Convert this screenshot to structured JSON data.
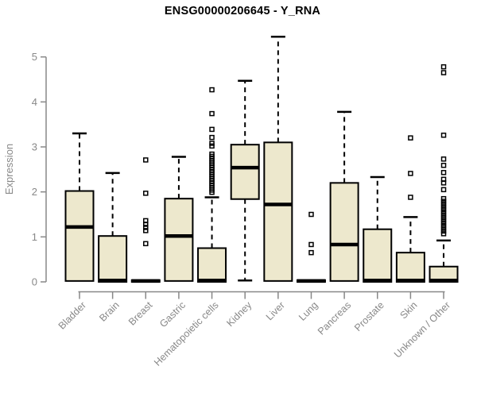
{
  "title": "ENSG00000206645 - Y_RNA",
  "colors": {
    "box_fill": "#EDE8CD",
    "box_stroke": "#000000",
    "median": "#000000",
    "whisker": "#000000",
    "outlier": "#000000",
    "axis": "#888888",
    "tick_label": "#888888",
    "title_text": "#000000"
  },
  "chart_data": {
    "type": "boxplot",
    "title": "ENSG00000206645 - Y_RNA",
    "xlabel": "",
    "ylabel": "Expression",
    "ylim": [
      0,
      5
    ],
    "yticks": [
      0,
      1,
      2,
      3,
      4,
      5
    ],
    "grid": false,
    "legend": "none",
    "categories": [
      "Bladder",
      "Brain",
      "Breast",
      "Gastric",
      "Hematopoietic cells",
      "Kidney",
      "Liver",
      "Lung",
      "Pancreas",
      "Prostate",
      "Skin",
      "Unknown / Other"
    ],
    "boxes": [
      {
        "label": "Bladder",
        "whisker_low": 0.02,
        "q1": 0.02,
        "median": 1.22,
        "q3": 2.02,
        "whisker_high": 3.3,
        "outliers": []
      },
      {
        "label": "Brain",
        "whisker_low": 0.0,
        "q1": 0.0,
        "median": 0.03,
        "q3": 1.02,
        "whisker_high": 2.42,
        "outliers": []
      },
      {
        "label": "Breast",
        "whisker_low": 0.0,
        "q1": 0.0,
        "median": 0.02,
        "q3": 0.04,
        "whisker_high": 0.04,
        "outliers": [
          2.71,
          1.97,
          1.36,
          1.28,
          1.21,
          1.14,
          0.85
        ]
      },
      {
        "label": "Gastric",
        "whisker_low": 0.02,
        "q1": 0.02,
        "median": 1.02,
        "q3": 1.85,
        "whisker_high": 2.78,
        "outliers": []
      },
      {
        "label": "Hematopoietic cells",
        "whisker_low": 0.0,
        "q1": 0.0,
        "median": 0.03,
        "q3": 0.75,
        "whisker_high": 1.88,
        "outliers": [
          4.27,
          3.74,
          3.39,
          3.21,
          3.08,
          3.02,
          2.84,
          2.79,
          2.74,
          2.69,
          2.64,
          2.59,
          2.54,
          2.49,
          2.44,
          2.39,
          2.34,
          2.29,
          2.24,
          2.19,
          2.14,
          2.09,
          2.04,
          1.99
        ]
      },
      {
        "label": "Kidney",
        "whisker_low": 0.03,
        "q1": 1.84,
        "median": 2.54,
        "q3": 3.05,
        "whisker_high": 4.47,
        "outliers": []
      },
      {
        "label": "Liver",
        "whisker_low": 0.02,
        "q1": 0.02,
        "median": 1.72,
        "q3": 3.1,
        "whisker_high": 5.45,
        "outliers": []
      },
      {
        "label": "Lung",
        "whisker_low": 0.0,
        "q1": 0.0,
        "median": 0.02,
        "q3": 0.04,
        "whisker_high": 0.04,
        "outliers": [
          1.5,
          0.83,
          0.65
        ]
      },
      {
        "label": "Pancreas",
        "whisker_low": 0.02,
        "q1": 0.02,
        "median": 0.83,
        "q3": 2.2,
        "whisker_high": 3.78,
        "outliers": []
      },
      {
        "label": "Prostate",
        "whisker_low": 0.0,
        "q1": 0.0,
        "median": 0.03,
        "q3": 1.17,
        "whisker_high": 2.33,
        "outliers": []
      },
      {
        "label": "Skin",
        "whisker_low": 0.0,
        "q1": 0.0,
        "median": 0.03,
        "q3": 0.65,
        "whisker_high": 1.44,
        "outliers": [
          3.2,
          2.41,
          1.88
        ]
      },
      {
        "label": "Unknown / Other",
        "whisker_low": 0.0,
        "q1": 0.0,
        "median": 0.03,
        "q3": 0.34,
        "whisker_high": 0.92,
        "outliers": [
          4.78,
          4.65,
          3.26,
          2.73,
          2.59,
          2.43,
          2.28,
          2.2,
          2.05,
          1.85,
          1.79,
          1.73,
          1.67,
          1.61,
          1.55,
          1.49,
          1.43,
          1.37,
          1.31,
          1.25,
          1.19,
          1.13,
          1.07
        ]
      }
    ]
  }
}
